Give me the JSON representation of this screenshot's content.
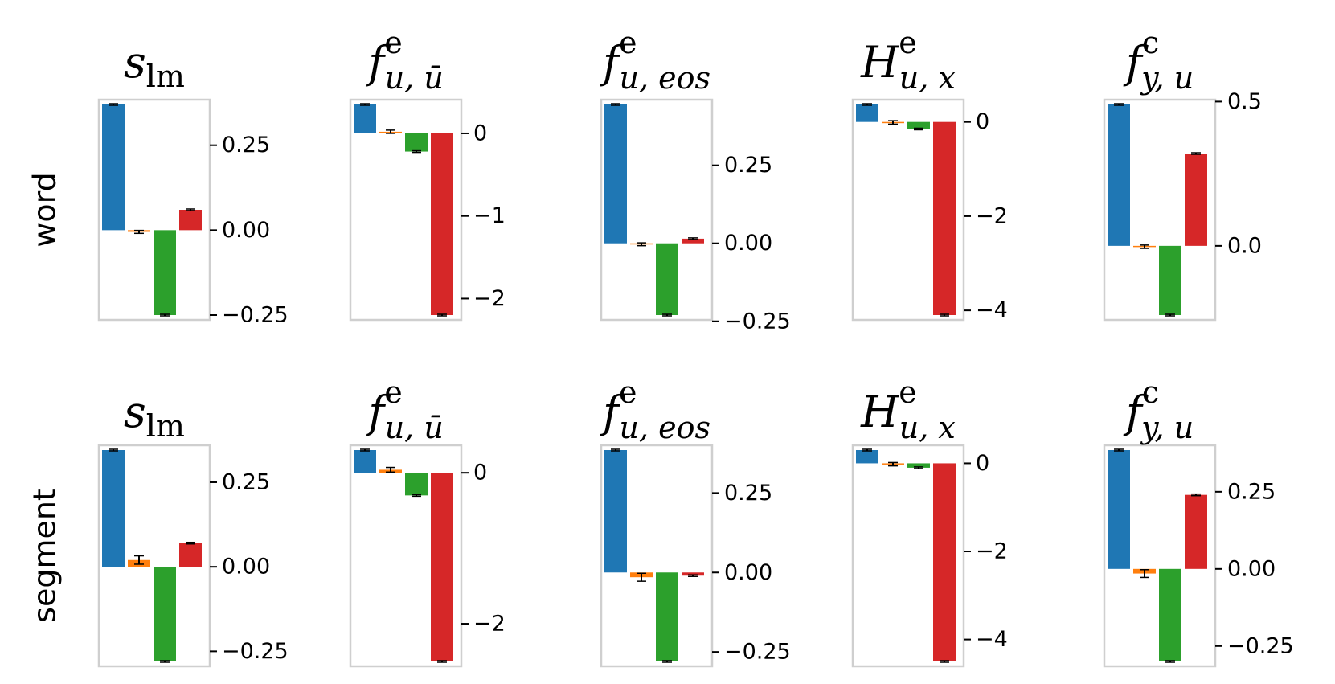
{
  "colors": {
    "blue": "#1f77b4",
    "orange": "#ff7f0e",
    "green": "#2ca02c",
    "red": "#d62728"
  },
  "rows": [
    {
      "label": "word"
    },
    {
      "label": "segment"
    }
  ],
  "columns": [
    {
      "title_main": "s",
      "title_sup": "",
      "title_sub": "lm"
    },
    {
      "title_main": "f",
      "title_sup": "e",
      "title_sub": "u, ū"
    },
    {
      "title_main": "f",
      "title_sup": "e",
      "title_sub": "u, eos"
    },
    {
      "title_main": "H",
      "title_sup": "e",
      "title_sub": "u, x"
    },
    {
      "title_main": "f",
      "title_sup": "c",
      "title_sub": "y, u"
    }
  ],
  "chart_data": [
    {
      "type": "bar",
      "row": "word",
      "title": "s_lm",
      "values": [
        0.37,
        -0.005,
        -0.25,
        0.06
      ],
      "errors": [
        0,
        0.002,
        0,
        0
      ],
      "ylim": [
        -0.25,
        0.37
      ],
      "ticks": [
        0.25,
        0.0,
        -0.25
      ],
      "tick_labels": [
        "0.25",
        "0.00",
        "−0.25"
      ]
    },
    {
      "type": "bar",
      "row": "word",
      "title": "f^e_{u,ū}",
      "values": [
        0.35,
        0.02,
        -0.22,
        -2.2
      ],
      "errors": [
        0,
        0.01,
        0,
        0
      ],
      "ylim": [
        -2.2,
        0.35
      ],
      "ticks": [
        0,
        -1,
        -2
      ],
      "tick_labels": [
        "0",
        "−1",
        "−2"
      ]
    },
    {
      "type": "bar",
      "row": "word",
      "title": "f^e_{u,eos}",
      "values": [
        0.445,
        -0.003,
        -0.23,
        0.015
      ],
      "errors": [
        0,
        0.002,
        0,
        0
      ],
      "ylim": [
        -0.23,
        0.445
      ],
      "ticks": [
        0.25,
        0.0,
        -0.25
      ],
      "tick_labels": [
        "0.25",
        "0.00",
        "−0.25"
      ]
    },
    {
      "type": "bar",
      "row": "word",
      "title": "H^e_{u,x}",
      "values": [
        0.37,
        -0.01,
        -0.15,
        -4.1
      ],
      "errors": [
        0,
        0.02,
        0,
        0
      ],
      "ylim": [
        -4.1,
        0.37
      ],
      "ticks": [
        0,
        -2,
        -4
      ],
      "tick_labels": [
        "0",
        "−2",
        "−4"
      ]
    },
    {
      "type": "bar",
      "row": "word",
      "title": "f^c_{y,u}",
      "values": [
        0.49,
        -0.003,
        -0.24,
        0.32
      ],
      "errors": [
        0,
        0.003,
        0,
        0
      ],
      "ylim": [
        -0.24,
        0.49
      ],
      "ticks": [
        0.5,
        0.0
      ],
      "tick_labels": [
        "0.5",
        "0.0"
      ]
    },
    {
      "type": "bar",
      "row": "segment",
      "title": "s_lm",
      "values": [
        0.345,
        0.02,
        -0.28,
        0.07
      ],
      "errors": [
        0,
        0.01,
        0,
        0
      ],
      "ylim": [
        -0.28,
        0.345
      ],
      "ticks": [
        0.25,
        0.0,
        -0.25
      ],
      "tick_labels": [
        "0.25",
        "0.00",
        "−0.25"
      ]
    },
    {
      "type": "bar",
      "row": "segment",
      "title": "f^e_{u,ū}",
      "values": [
        0.3,
        0.04,
        -0.3,
        -2.5
      ],
      "errors": [
        0,
        0.02,
        0,
        0
      ],
      "ylim": [
        -2.5,
        0.3
      ],
      "ticks": [
        0,
        -2
      ],
      "tick_labels": [
        "0",
        "−2"
      ]
    },
    {
      "type": "bar",
      "row": "segment",
      "title": "f^e_{u,eos}",
      "values": [
        0.385,
        -0.015,
        -0.28,
        -0.01
      ],
      "errors": [
        0,
        0.01,
        0,
        0
      ],
      "ylim": [
        -0.28,
        0.385
      ],
      "ticks": [
        0.25,
        0.0,
        -0.25
      ],
      "tick_labels": [
        "0.25",
        "0.00",
        "−0.25"
      ]
    },
    {
      "type": "bar",
      "row": "segment",
      "title": "H^e_{u,x}",
      "values": [
        0.3,
        -0.02,
        -0.1,
        -4.5
      ],
      "errors": [
        0,
        0.02,
        0,
        0
      ],
      "ylim": [
        -4.5,
        0.3
      ],
      "ticks": [
        0,
        -2,
        -4
      ],
      "tick_labels": [
        "0",
        "−2",
        "−4"
      ]
    },
    {
      "type": "bar",
      "row": "segment",
      "title": "f^c_{y,u}",
      "values": [
        0.385,
        -0.015,
        -0.3,
        0.24
      ],
      "errors": [
        0,
        0.01,
        0,
        0
      ],
      "ylim": [
        -0.3,
        0.385
      ],
      "ticks": [
        0.25,
        0.0,
        -0.25
      ],
      "tick_labels": [
        "0.25",
        "0.00",
        "−0.25"
      ]
    }
  ]
}
